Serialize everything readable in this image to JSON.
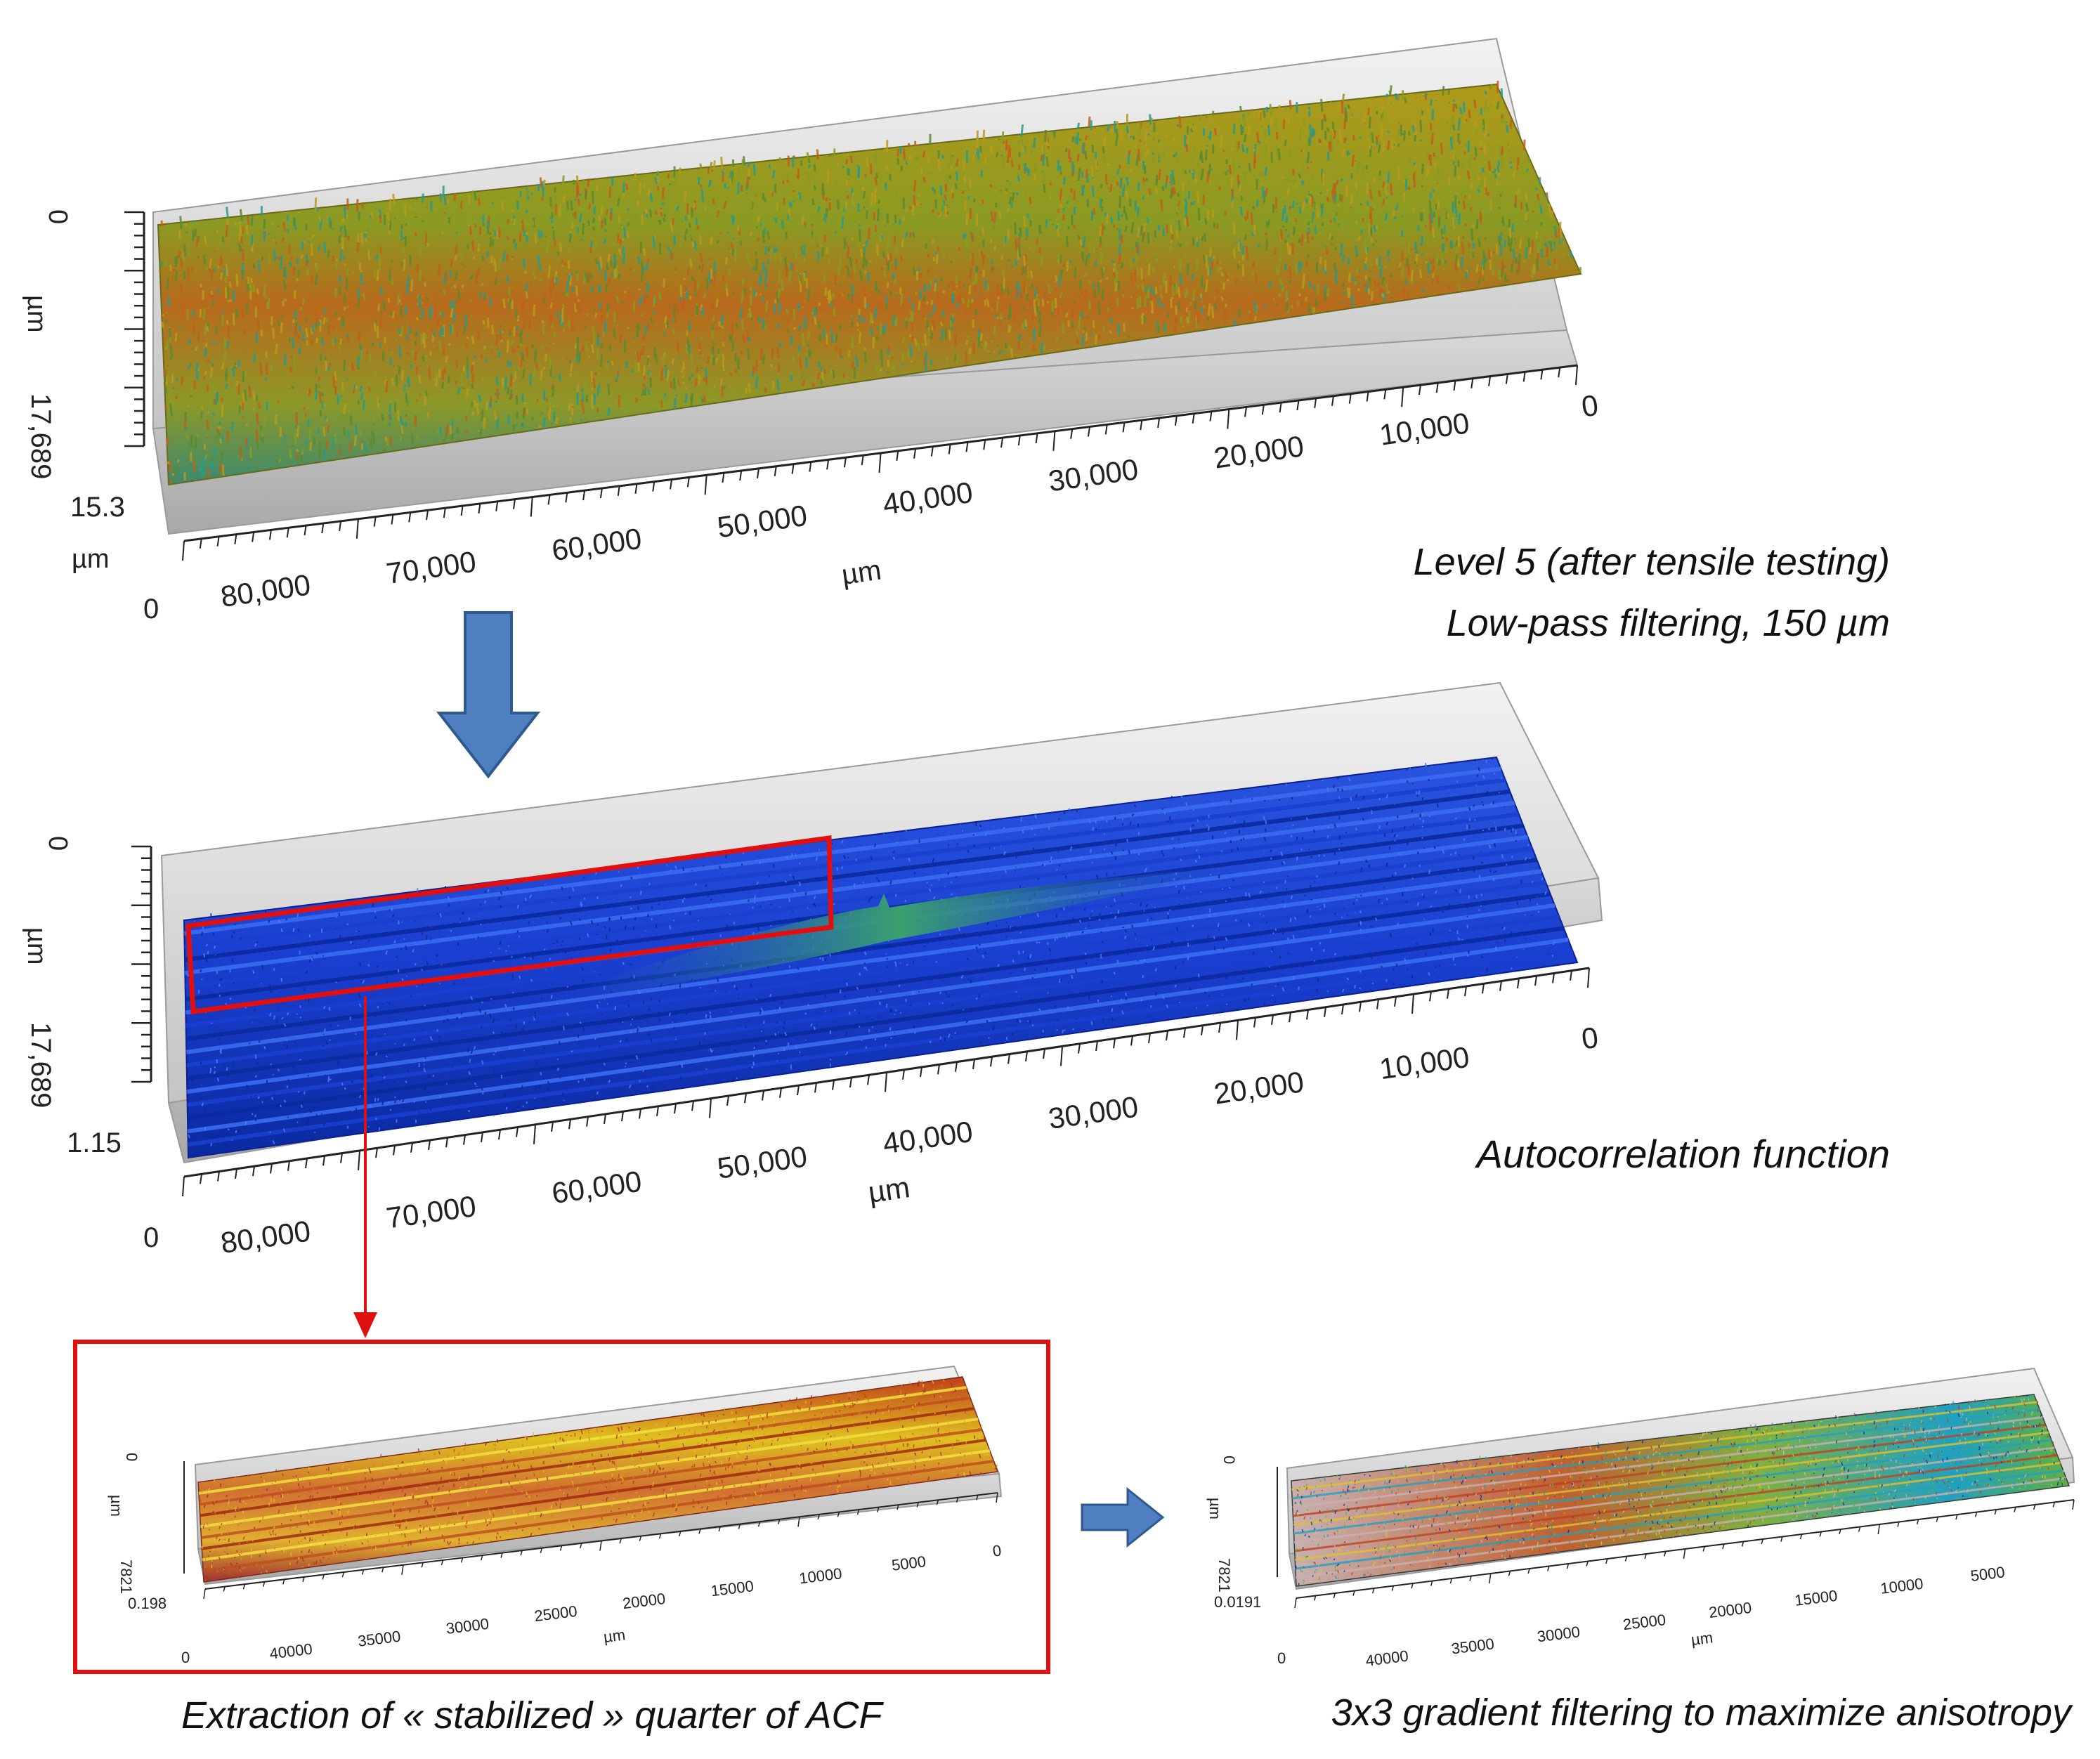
{
  "panel1": {
    "z_top": "0",
    "z_unit": "µm",
    "y_extent": "17,689",
    "z_max": "15.3",
    "y_unit": "µm",
    "y_zero": "0",
    "x_ticks": [
      "80,000",
      "70,000",
      "60,000",
      "50,000",
      "40,000",
      "30,000",
      "20,000",
      "10,000",
      "0"
    ],
    "x_unit": "µm",
    "caption_line1": "Level 5 (after  tensile testing)",
    "caption_line2": "Low-pass filtering, 150 µm",
    "surface_colors": [
      "#8a9a22",
      "#b89a1c",
      "#c0601a",
      "#5c8a30",
      "#2a9a8a"
    ]
  },
  "panel2": {
    "z_top": "0",
    "z_unit": "µm",
    "y_extent": "17,689",
    "z_max": "1.15",
    "y_zero": "0",
    "x_ticks": [
      "80,000",
      "70,000",
      "60,000",
      "50,000",
      "40,000",
      "30,000",
      "20,000",
      "10,000",
      "0"
    ],
    "x_unit": "µm",
    "caption": "Autocorrelation function",
    "surface_colors": [
      "#1a3fd0",
      "#2a55e0",
      "#0a2aa0",
      "#3a9a6a"
    ],
    "highlight_color": "#e01010"
  },
  "panel3": {
    "z_top": "0",
    "z_unit": "µm",
    "y_extent": "7821",
    "z_max": "0.198",
    "y_zero": "0",
    "x_ticks": [
      "40000",
      "35000",
      "30000",
      "25000",
      "20000",
      "15000",
      "10000",
      "5000",
      "0"
    ],
    "x_unit": "µm",
    "caption": "Extraction of « stabilized » quarter of ACF",
    "surface_colors": [
      "#c0401a",
      "#e0c020",
      "#d08030",
      "#a03030"
    ]
  },
  "panel4": {
    "z_top": "0",
    "z_unit": "µm",
    "y_extent": "7821",
    "z_max": "0.0191",
    "y_zero": "0",
    "x_ticks": [
      "40000",
      "35000",
      "30000",
      "25000",
      "20000",
      "15000",
      "10000",
      "5000"
    ],
    "x_unit": "µm",
    "caption": "3x3 gradient filtering to maximize anisotropy",
    "surface_colors": [
      "#c04020",
      "#e0c030",
      "#60b040",
      "#20a0c0",
      "#c8b0b0",
      "#1030a0"
    ]
  },
  "arrows": {
    "main_color": "#4f7fc0",
    "main_stroke": "#2f5a90",
    "link_color": "#e01010"
  }
}
